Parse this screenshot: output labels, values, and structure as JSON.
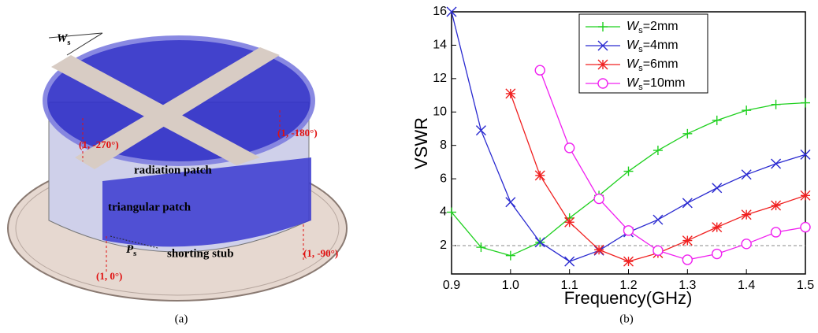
{
  "figure": {
    "panel_a": {
      "labels": [
        "Ws",
        "(1, -270°)",
        "(1, -180°)",
        "radiation patch",
        "triangular patch",
        "Ps",
        "shorting stub",
        "(1, 0°)",
        "(1, -90°)"
      ]
    },
    "captions": [
      "(a)",
      "(b)"
    ]
  },
  "chart_data": {
    "type": "line",
    "x_label": "Frequency(GHz)",
    "y_label": "VSWR",
    "x": [
      0.9,
      0.95,
      1.0,
      1.05,
      1.1,
      1.15,
      1.2,
      1.25,
      1.3,
      1.35,
      1.4,
      1.45,
      1.5
    ],
    "series": [
      {
        "name": "Ws=2mm",
        "color": "#1fd01f",
        "marker": "plus",
        "values": [
          4.0,
          1.9,
          1.4,
          2.2,
          3.65,
          5.0,
          6.45,
          7.7,
          8.7,
          9.5,
          10.1,
          10.45,
          10.55
        ]
      },
      {
        "name": "Ws=4mm",
        "color": "#2a2ad0",
        "marker": "cross",
        "values": [
          16,
          8.9,
          4.6,
          2.2,
          1.05,
          1.7,
          2.8,
          3.55,
          4.55,
          5.45,
          6.25,
          6.9,
          7.45
        ]
      },
      {
        "name": "Ws=6mm",
        "color": "#f02020",
        "marker": "asterisk",
        "values": [
          null,
          null,
          11.1,
          6.2,
          3.4,
          1.75,
          1.05,
          1.55,
          2.3,
          3.1,
          3.85,
          4.4,
          5.0
        ]
      },
      {
        "name": "Ws=10mm",
        "color": "#f020f0",
        "marker": "circle",
        "values": [
          null,
          null,
          null,
          12.5,
          7.85,
          4.8,
          2.9,
          1.7,
          1.15,
          1.5,
          2.1,
          2.8,
          3.1
        ]
      }
    ],
    "reference_line": 2,
    "xlim": [
      0.9,
      1.5
    ],
    "ylim": [
      0.3,
      16
    ],
    "xticks": [
      0.9,
      {
        "value": 1.0,
        "label": "1.0"
      },
      1.1,
      1.2,
      1.3,
      1.4,
      1.5
    ],
    "yticks": [
      2,
      4,
      6,
      8,
      10,
      12,
      14,
      16
    ],
    "legend": "upper-center"
  }
}
